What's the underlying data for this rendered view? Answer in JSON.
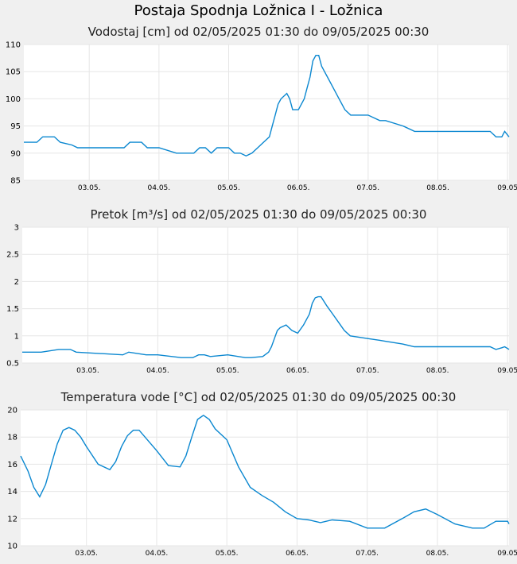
{
  "title": "Postaja Spodnja Ložnica I - Ložnica",
  "chart_data": [
    {
      "type": "line",
      "title": "Vodostaj [cm] od 02/05/2025 01:30 do 09/05/2025 00:30",
      "xlabel": "",
      "ylabel": "",
      "x_tick_labels": [
        "03.05.",
        "04.05.",
        "05.05.",
        "06.05.",
        "07.05.",
        "08.05.",
        "09.05"
      ],
      "ylim": [
        85,
        110
      ],
      "y_ticks": [
        "85",
        "90",
        "95",
        "100",
        "105",
        "110"
      ],
      "grid": true,
      "series": [
        {
          "values_time": [
            "02.05. 01:30",
            "02.05. 06:00",
            "02.05. 08:00",
            "02.05. 12:00",
            "02.05. 14:00",
            "02.05. 18:00",
            "02.05. 20:00",
            "03.05. 06:00",
            "03.05. 12:00",
            "03.05. 14:00",
            "03.05. 18:00",
            "03.05. 20:00",
            "04.05. 00:00",
            "04.05. 06:00",
            "04.05. 08:00",
            "04.05. 10:00",
            "04.05. 12:00",
            "04.05. 14:00",
            "04.05. 16:00",
            "04.05. 18:00",
            "04.05. 20:00",
            "05.05. 00:00",
            "05.05. 02:00",
            "05.05. 04:00",
            "05.05. 06:00",
            "05.05. 08:00",
            "05.05. 10:00",
            "05.05. 12:00",
            "05.05. 14:00",
            "05.05. 15:00",
            "05.05. 16:00",
            "05.05. 17:00",
            "05.05. 18:00",
            "05.05. 20:00",
            "05.05. 21:00",
            "05.05. 22:00",
            "06.05. 00:00",
            "06.05. 02:00",
            "06.05. 03:00",
            "06.05. 04:00",
            "06.05. 05:00",
            "06.05. 06:00",
            "06.05. 07:00",
            "06.05. 08:00",
            "06.05. 10:00",
            "06.05. 12:00",
            "06.05. 14:00",
            "06.05. 16:00",
            "06.05. 18:00",
            "06.05. 21:00",
            "07.05. 00:00",
            "07.05. 04:00",
            "07.05. 06:00",
            "07.05. 12:00",
            "07.05. 16:00",
            "07.05. 20:00",
            "08.05. 06:00",
            "08.05. 12:00",
            "08.05. 18:00",
            "08.05. 20:00",
            "08.05. 22:00",
            "08.05. 23:00",
            "09.05. 00:30"
          ],
          "values": [
            92,
            92,
            93,
            93,
            92,
            91.5,
            91,
            91,
            91,
            92,
            92,
            91,
            91,
            90,
            90,
            90,
            90,
            91,
            91,
            90,
            91,
            91,
            90,
            90,
            89.5,
            90,
            91,
            92,
            93,
            95,
            97,
            99,
            100,
            101,
            100,
            98,
            98,
            100,
            102,
            104,
            107,
            108,
            108,
            106,
            104,
            102,
            100,
            98,
            97,
            97,
            97,
            96,
            96,
            95,
            94,
            94,
            94,
            94,
            94,
            93,
            93,
            94,
            93
          ]
        }
      ]
    },
    {
      "type": "line",
      "title": "Pretok [m³/s] od 02/05/2025 01:30 do 09/05/2025 00:30",
      "xlabel": "",
      "ylabel": "",
      "x_tick_labels": [
        "03.05.",
        "04.05.",
        "05.05.",
        "06.05.",
        "07.05.",
        "08.05.",
        "09.05"
      ],
      "ylim": [
        0.5,
        3
      ],
      "y_ticks": [
        "0.5",
        "1",
        "1.5",
        "2",
        "2.5",
        "3"
      ],
      "grid": true,
      "series": [
        {
          "values_time": [
            "02.05. 01:30",
            "02.05. 08:00",
            "02.05. 14:00",
            "02.05. 18:00",
            "02.05. 20:00",
            "03.05. 12:00",
            "03.05. 14:00",
            "03.05. 20:00",
            "04.05. 00:00",
            "04.05. 08:00",
            "04.05. 10:00",
            "04.05. 12:00",
            "04.05. 14:00",
            "04.05. 16:00",
            "04.05. 18:00",
            "05.05. 00:00",
            "05.05. 06:00",
            "05.05. 08:00",
            "05.05. 12:00",
            "05.05. 14:00",
            "05.05. 15:00",
            "05.05. 16:00",
            "05.05. 17:00",
            "05.05. 18:00",
            "05.05. 20:00",
            "05.05. 22:00",
            "06.05. 00:00",
            "06.05. 02:00",
            "06.05. 04:00",
            "06.05. 05:00",
            "06.05. 06:00",
            "06.05. 07:00",
            "06.05. 08:00",
            "06.05. 10:00",
            "06.05. 12:00",
            "06.05. 14:00",
            "06.05. 16:00",
            "06.05. 18:00",
            "07.05. 00:00",
            "07.05. 04:00",
            "07.05. 06:00",
            "07.05. 12:00",
            "07.05. 16:00",
            "07.05. 20:00",
            "08.05. 06:00",
            "08.05. 18:00",
            "08.05. 20:00",
            "08.05. 22:00",
            "08.05. 23:00",
            "09.05. 00:30"
          ],
          "values": [
            0.7,
            0.7,
            0.75,
            0.75,
            0.7,
            0.65,
            0.7,
            0.65,
            0.65,
            0.6,
            0.6,
            0.6,
            0.65,
            0.65,
            0.62,
            0.65,
            0.6,
            0.6,
            0.62,
            0.7,
            0.8,
            0.95,
            1.1,
            1.15,
            1.2,
            1.1,
            1.05,
            1.2,
            1.4,
            1.6,
            1.7,
            1.72,
            1.72,
            1.55,
            1.4,
            1.25,
            1.1,
            1.0,
            0.95,
            0.92,
            0.9,
            0.85,
            0.8,
            0.8,
            0.8,
            0.8,
            0.75,
            0.78,
            0.8,
            0.75
          ]
        }
      ]
    },
    {
      "type": "line",
      "title": "Temperatura vode [°C] od 02/05/2025 01:30 do 09/05/2025 00:30",
      "xlabel": "",
      "ylabel": "",
      "x_tick_labels": [
        "03.05.",
        "04.05.",
        "05.05.",
        "06.05.",
        "07.05.",
        "08.05.",
        "09.05"
      ],
      "ylim": [
        10,
        20
      ],
      "y_ticks": [
        "10",
        "12",
        "14",
        "16",
        "18",
        "20"
      ],
      "grid": true,
      "series": [
        {
          "values_time": [
            "02.05. 01:30",
            "02.05. 04:00",
            "02.05. 06:00",
            "02.05. 08:00",
            "02.05. 10:00",
            "02.05. 12:00",
            "02.05. 14:00",
            "02.05. 16:00",
            "02.05. 18:00",
            "02.05. 20:00",
            "02.05. 22:00",
            "03.05. 00:00",
            "03.05. 04:00",
            "03.05. 08:00",
            "03.05. 10:00",
            "03.05. 12:00",
            "03.05. 14:00",
            "03.05. 16:00",
            "03.05. 18:00",
            "03.05. 20:00",
            "04.05. 00:00",
            "04.05. 04:00",
            "04.05. 08:00",
            "04.05. 10:00",
            "04.05. 12:00",
            "04.05. 14:00",
            "04.05. 16:00",
            "04.05. 18:00",
            "04.05. 20:00",
            "05.05. 00:00",
            "05.05. 04:00",
            "05.05. 08:00",
            "05.05. 12:00",
            "05.05. 16:00",
            "05.05. 20:00",
            "06.05. 00:00",
            "06.05. 04:00",
            "06.05. 08:00",
            "06.05. 12:00",
            "06.05. 18:00",
            "07.05. 00:00",
            "07.05. 06:00",
            "07.05. 12:00",
            "07.05. 16:00",
            "07.05. 20:00",
            "08.05. 00:00",
            "08.05. 06:00",
            "08.05. 12:00",
            "08.05. 16:00",
            "08.05. 20:00",
            "09.05. 00:00",
            "09.05. 00:30"
          ],
          "values": [
            16.6,
            15.5,
            14.3,
            13.6,
            14.5,
            16.0,
            17.5,
            18.5,
            18.7,
            18.5,
            18.0,
            17.3,
            16.0,
            15.6,
            16.2,
            17.3,
            18.1,
            18.5,
            18.5,
            18.0,
            17.0,
            15.9,
            15.8,
            16.6,
            18.0,
            19.3,
            19.6,
            19.3,
            18.6,
            17.8,
            15.8,
            14.3,
            13.7,
            13.2,
            12.5,
            12.0,
            11.9,
            11.7,
            11.9,
            11.8,
            11.3,
            11.3,
            12.0,
            12.5,
            12.7,
            12.3,
            11.6,
            11.3,
            11.3,
            11.8,
            11.8,
            11.6
          ]
        }
      ]
    }
  ]
}
